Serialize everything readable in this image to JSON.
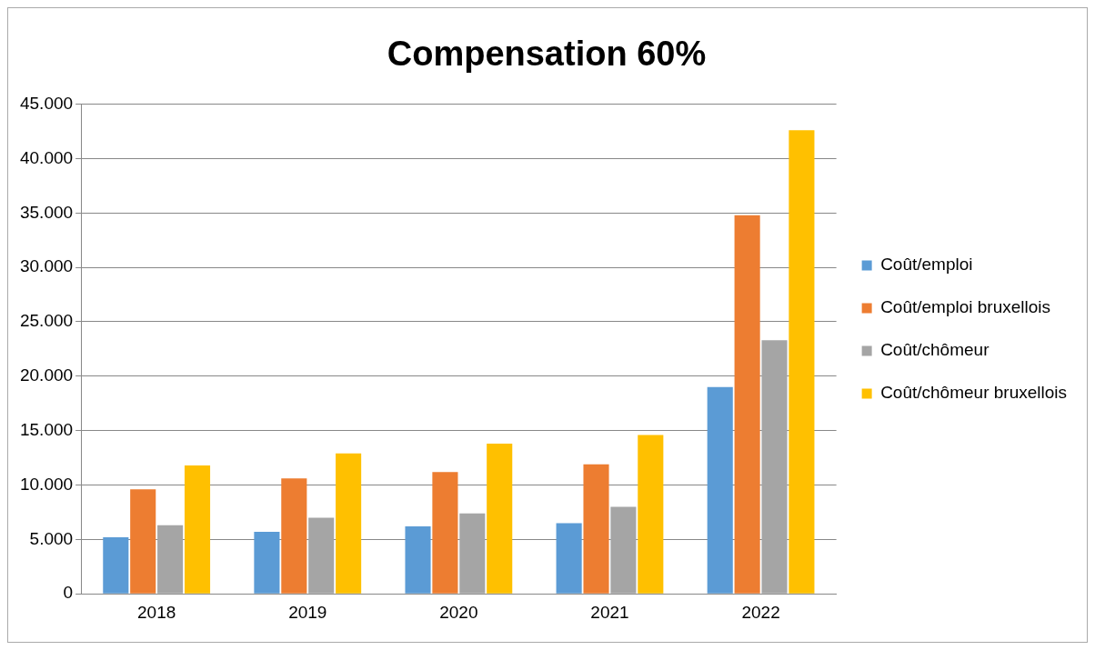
{
  "chart_data": {
    "type": "bar",
    "title": "Compensation 60%",
    "categories": [
      "2018",
      "2019",
      "2020",
      "2021",
      "2022"
    ],
    "series": [
      {
        "name": "Coût/emploi",
        "color": "#5b9bd5",
        "values": [
          5200,
          5700,
          6200,
          6500,
          19000
        ]
      },
      {
        "name": "Coût/emploi bruxellois",
        "color": "#ed7d31",
        "values": [
          9600,
          10600,
          11200,
          11900,
          34800
        ]
      },
      {
        "name": "Coût/chômeur",
        "color": "#a5a5a5",
        "values": [
          6300,
          7000,
          7400,
          8000,
          23300
        ]
      },
      {
        "name": "Coût/chômeur bruxellois",
        "color": "#ffc000",
        "values": [
          11800,
          12900,
          13800,
          14600,
          42600
        ]
      }
    ],
    "ylim": [
      0,
      45000
    ],
    "yticks": [
      0,
      {
        "value": 5000,
        "label": "5.000"
      },
      {
        "value": 10000,
        "label": "10.000"
      },
      {
        "value": 15000,
        "label": "15.000"
      },
      {
        "value": 20000,
        "label": "20.000"
      },
      {
        "value": 25000,
        "label": "25.000"
      },
      {
        "value": 30000,
        "label": "30.000"
      },
      {
        "value": 35000,
        "label": "35.000"
      },
      {
        "value": 40000,
        "label": "40.000"
      },
      {
        "value": 45000,
        "label": "45.000"
      }
    ],
    "grid": "y",
    "legend": "right"
  }
}
